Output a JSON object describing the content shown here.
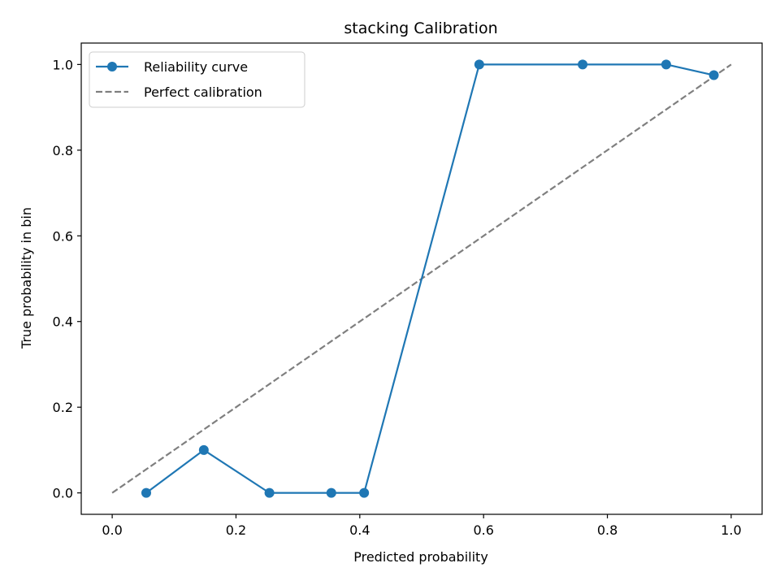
{
  "chart_data": {
    "type": "line",
    "title": "stacking Calibration",
    "xlabel": "Predicted probability",
    "ylabel": "True probability in bin",
    "xlim": [
      -0.05,
      1.05
    ],
    "ylim": [
      -0.05,
      1.05
    ],
    "xticks": [
      "0.0",
      "0.2",
      "0.4",
      "0.6",
      "0.8",
      "1.0"
    ],
    "yticks": [
      "0.0",
      "0.2",
      "0.4",
      "0.6",
      "0.8",
      "1.0"
    ],
    "grid": false,
    "legend_position": "upper-left",
    "series": [
      {
        "name": "Reliability curve",
        "style": "solid-with-markers",
        "color": "#1f77b4",
        "points": [
          {
            "x": 0.055,
            "y": 0.0
          },
          {
            "x": 0.148,
            "y": 0.1
          },
          {
            "x": 0.254,
            "y": 0.0
          },
          {
            "x": 0.354,
            "y": 0.0
          },
          {
            "x": 0.407,
            "y": 0.0
          },
          {
            "x": 0.593,
            "y": 1.0
          },
          {
            "x": 0.76,
            "y": 1.0
          },
          {
            "x": 0.895,
            "y": 1.0
          },
          {
            "x": 0.972,
            "y": 0.975
          }
        ]
      },
      {
        "name": "Perfect calibration",
        "style": "dashed",
        "color": "#7f7f7f",
        "points": [
          {
            "x": 0.0,
            "y": 0.0
          },
          {
            "x": 1.0,
            "y": 1.0
          }
        ]
      }
    ]
  }
}
